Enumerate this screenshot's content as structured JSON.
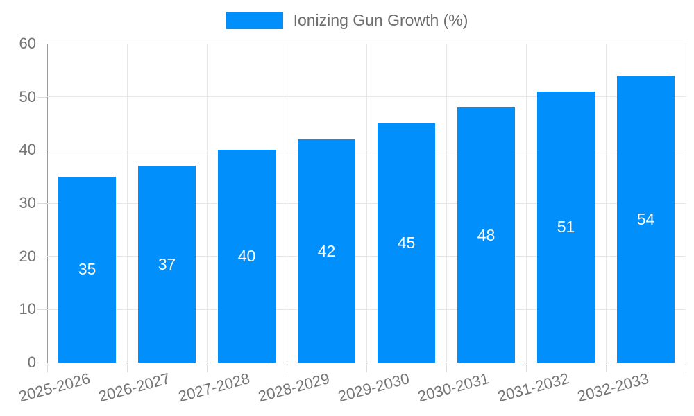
{
  "chart_data": {
    "type": "bar",
    "title": "",
    "series_name": "Ionizing Gun Growth (%)",
    "categories": [
      "2025-2026",
      "2026-2027",
      "2027-2028",
      "2028-2029",
      "2029-2030",
      "2030-2031",
      "2031-2032",
      "2032-2033"
    ],
    "values": [
      35,
      37,
      40,
      42,
      45,
      48,
      51,
      54
    ],
    "xlabel": "",
    "ylabel": "",
    "ylim": [
      0,
      60
    ],
    "ytick_step": 10,
    "yticks": [
      0,
      10,
      20,
      30,
      40,
      50,
      60
    ],
    "grid": "on",
    "legend_position": "top-center",
    "colors": {
      "bar": "#008FFB",
      "bar_value_label": "#ffffff",
      "gridline": "#e7e7e7",
      "axis_line": "#9a9a9a",
      "tick": "#dcdcdc",
      "axis_text": "#757575",
      "legend_text": "#6d6d6d",
      "background": "#ffffff"
    }
  }
}
